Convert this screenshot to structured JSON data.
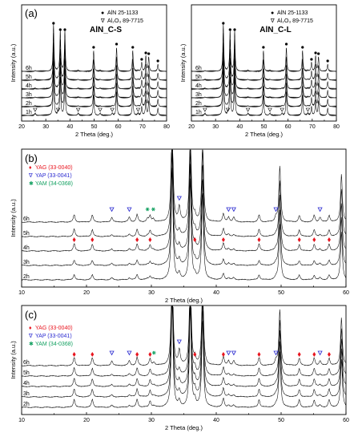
{
  "chart_data": [
    {
      "id": "a-left",
      "type": "line",
      "panel_label": "(a)",
      "sample_label": "AlN_C-S",
      "xlabel": "2 Theta (deg.)",
      "ylabel": "Intensity (a.u.)",
      "xlim": [
        20,
        80
      ],
      "xticks": [
        "20",
        "30",
        "40",
        "50",
        "60",
        "70",
        "80"
      ],
      "series": [
        {
          "name": "1h"
        },
        {
          "name": "2h"
        },
        {
          "name": "3h"
        },
        {
          "name": "4h"
        },
        {
          "name": "5h"
        },
        {
          "name": "6h"
        }
      ],
      "legend": [
        {
          "symbol": "●",
          "text": "AlN 25-1133"
        },
        {
          "symbol": "∇",
          "text": "Al₂O₃ 89-7715"
        }
      ],
      "aln_peaks": [
        33.2,
        36.0,
        37.9,
        49.8,
        59.3,
        66.0,
        69.7,
        71.4,
        72.6,
        76.4
      ],
      "al2o3_peaks": [
        25.6,
        35.1,
        43.4,
        52.5,
        57.5,
        68.2
      ],
      "al2o3_marker_row": "1h"
    },
    {
      "id": "a-right",
      "type": "line",
      "sample_label": "AlN_C-L",
      "xlabel": "2 Theta (deg.)",
      "ylabel": "Intensity (a.u.)",
      "xlim": [
        20,
        80
      ],
      "xticks": [
        "20",
        "30",
        "40",
        "50",
        "60",
        "70",
        "80"
      ],
      "series": [
        {
          "name": "1h"
        },
        {
          "name": "2h"
        },
        {
          "name": "3h"
        },
        {
          "name": "4h"
        },
        {
          "name": "5h"
        },
        {
          "name": "6h"
        }
      ],
      "legend": [
        {
          "symbol": "●",
          "text": "AlN 25-1133"
        },
        {
          "symbol": "∇",
          "text": "Al₂O₃ 89-7715"
        }
      ],
      "aln_peaks": [
        33.2,
        36.0,
        37.9,
        49.8,
        59.3,
        66.0,
        69.7,
        71.4,
        72.6,
        76.4
      ],
      "al2o3_peaks": [
        25.6,
        35.1,
        43.4,
        52.5,
        57.5,
        68.2
      ],
      "al2o3_marker_row": "1h"
    },
    {
      "id": "b",
      "type": "line",
      "panel_label": "(b)",
      "xlabel": "2 Theta (deg.)",
      "ylabel": "Intensity (a.u.)",
      "xlim": [
        10,
        60
      ],
      "xticks": [
        "10",
        "20",
        "30",
        "40",
        "50",
        "60"
      ],
      "series": [
        {
          "name": "2h"
        },
        {
          "name": "3h"
        },
        {
          "name": "4h"
        },
        {
          "name": "5h"
        },
        {
          "name": "6h"
        }
      ],
      "legend": [
        {
          "symbol": "♦",
          "text": "YAG (33-0040)",
          "color": "#e8141e"
        },
        {
          "symbol": "∇",
          "text": "YAP (33-0041)",
          "color": "#2a2ad0"
        },
        {
          "symbol": "✱",
          "text": "YAM (34-0368)",
          "color": "#12a060"
        }
      ],
      "yag_peaks": [
        18.1,
        20.9,
        27.8,
        29.8,
        36.7,
        41.1,
        46.6,
        52.8,
        55.1,
        57.4
      ],
      "yap_peaks": [
        23.9,
        26.6,
        34.3,
        41.9,
        42.7,
        49.2,
        56.0
      ],
      "yam_peaks": [
        29.4,
        30.3
      ],
      "yag_marker_row": "4h",
      "yap_marker_row": "6h",
      "yam_marker_row": "6h"
    },
    {
      "id": "c",
      "type": "line",
      "panel_label": "(c)",
      "xlabel": "2 Theta (deg.)",
      "ylabel": "Intensity (a.u.)",
      "xlim": [
        10,
        60
      ],
      "xticks": [
        "10",
        "20",
        "30",
        "40",
        "50",
        "60"
      ],
      "series": [
        {
          "name": "2h"
        },
        {
          "name": "3h"
        },
        {
          "name": "4h"
        },
        {
          "name": "5h"
        },
        {
          "name": "6h"
        }
      ],
      "legend": [
        {
          "symbol": "♦",
          "text": "YAG (33-0040)",
          "color": "#e8141e"
        },
        {
          "symbol": "∇",
          "text": "YAP (33-0041)",
          "color": "#2a2ad0"
        },
        {
          "symbol": "✱",
          "text": "YAM (34-0368)",
          "color": "#12a060"
        }
      ],
      "yag_peaks": [
        18.1,
        20.9,
        27.8,
        29.8,
        36.7,
        41.1,
        46.6,
        52.8,
        55.1,
        57.4
      ],
      "yap_peaks": [
        23.9,
        26.6,
        34.3,
        41.9,
        42.7,
        49.2,
        56.0
      ],
      "yam_peaks": [
        30.4
      ],
      "yag_marker_row": "6h",
      "yap_marker_row": "6h",
      "yam_marker_row": "6h"
    }
  ]
}
